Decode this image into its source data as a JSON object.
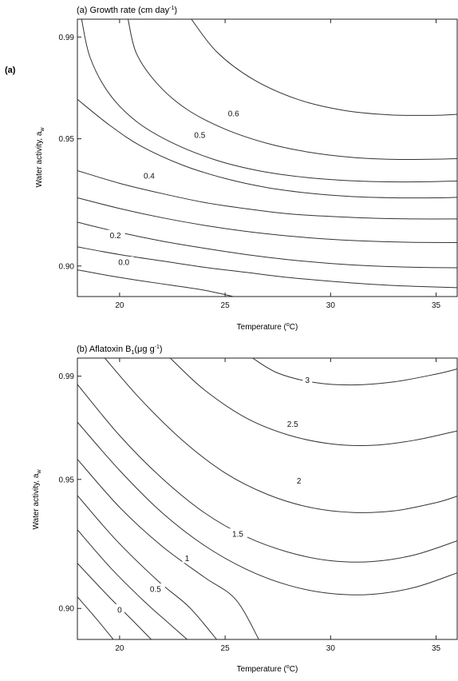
{
  "figure": {
    "left_panel_label": "(a)"
  },
  "chart_data": [
    {
      "type": "contour",
      "title": "(a) Growth rate (cm day",
      "title_sup": "-1",
      "title_end": ")",
      "xlabel": "Temperature (",
      "xlabel_sup": "o",
      "xlabel_end": "C)",
      "ylabel": "Water activity, a",
      "ylabel_sub": "w",
      "xlim": [
        18,
        36
      ],
      "ylim": [
        0.888,
        0.997
      ],
      "xticks": [
        20,
        25,
        30,
        35
      ],
      "xtick_labels": [
        "20",
        "25",
        "30",
        "35"
      ],
      "yticks": [
        0.9,
        0.95,
        0.99
      ],
      "ytick_labels": [
        "0.90",
        "0.95",
        "0.99"
      ],
      "contours": [
        {
          "level": "0.0",
          "label_at": [
            20.2,
            0.9015
          ],
          "points": [
            [
              18,
              0.8985
            ],
            [
              19.5,
              0.8962
            ],
            [
              21,
              0.8942
            ],
            [
              22.5,
              0.8924
            ],
            [
              24,
              0.8905
            ],
            [
              25.4,
              0.888
            ]
          ]
        },
        {
          "level": "",
          "points": [
            [
              18,
              0.9075
            ],
            [
              20,
              0.9045
            ],
            [
              22,
              0.902
            ],
            [
              24,
              0.8995
            ],
            [
              26,
              0.8975
            ],
            [
              28,
              0.8955
            ],
            [
              30,
              0.894
            ],
            [
              32,
              0.8928
            ],
            [
              34,
              0.892
            ],
            [
              36,
              0.8915
            ]
          ]
        },
        {
          "level": "0.2",
          "label_at": [
            19.8,
            0.912
          ],
          "points": [
            [
              18,
              0.9172
            ],
            [
              20,
              0.9132
            ],
            [
              22,
              0.9098
            ],
            [
              24,
              0.907
            ],
            [
              26,
              0.9045
            ],
            [
              28,
              0.9025
            ],
            [
              30,
              0.901
            ],
            [
              32,
              0.9
            ],
            [
              34,
              0.8995
            ],
            [
              36,
              0.8993
            ]
          ]
        },
        {
          "level": "",
          "points": [
            [
              18,
              0.9268
            ],
            [
              20,
              0.9226
            ],
            [
              22,
              0.919
            ],
            [
              24,
              0.916
            ],
            [
              26,
              0.9136
            ],
            [
              28,
              0.9118
            ],
            [
              30,
              0.9105
            ],
            [
              32,
              0.9097
            ],
            [
              34,
              0.9093
            ],
            [
              36,
              0.9092
            ]
          ]
        },
        {
          "level": "0.4",
          "label_at": [
            21.4,
            0.9355
          ],
          "points": [
            [
              18,
              0.9375
            ],
            [
              20,
              0.9325
            ],
            [
              22,
              0.9285
            ],
            [
              24,
              0.925
            ],
            [
              26,
              0.9225
            ],
            [
              28,
              0.9205
            ],
            [
              30,
              0.9195
            ],
            [
              32,
              0.9188
            ],
            [
              34,
              0.9185
            ],
            [
              36,
              0.9185
            ]
          ]
        },
        {
          "level": "0.5",
          "label_at": [
            23.8,
            0.9515
          ],
          "points": [
            [
              18,
              0.9655
            ],
            [
              19.5,
              0.9555
            ],
            [
              21,
              0.9472
            ],
            [
              23,
              0.9396
            ],
            [
              25,
              0.9344
            ],
            [
              27,
              0.9308
            ],
            [
              29,
              0.9286
            ],
            [
              31,
              0.9273
            ],
            [
              33,
              0.9268
            ],
            [
              35,
              0.9268
            ],
            [
              36,
              0.927
            ]
          ]
        },
        {
          "level": "",
          "points": [
            [
              18.2,
              0.997
            ],
            [
              18.6,
              0.982
            ],
            [
              19.5,
              0.9678
            ],
            [
              20.8,
              0.9568
            ],
            [
              22.5,
              0.9484
            ],
            [
              24.5,
              0.9418
            ],
            [
              26.5,
              0.9376
            ],
            [
              28.5,
              0.9351
            ],
            [
              30.5,
              0.9337
            ],
            [
              32.5,
              0.9331
            ],
            [
              34.5,
              0.9331
            ],
            [
              36,
              0.9334
            ]
          ]
        },
        {
          "level": "",
          "points": [
            [
              20.4,
              0.997
            ],
            [
              20.8,
              0.9835
            ],
            [
              21.8,
              0.9715
            ],
            [
              23.2,
              0.9615
            ],
            [
              25,
              0.9538
            ],
            [
              27,
              0.9482
            ],
            [
              29,
              0.9447
            ],
            [
              31,
              0.9427
            ],
            [
              33,
              0.9419
            ],
            [
              35,
              0.942
            ],
            [
              36,
              0.9422
            ]
          ]
        },
        {
          "level": "0.6",
          "label_at": [
            25.4,
            0.96
          ],
          "points": [
            [
              23.4,
              0.997
            ],
            [
              24.6,
              0.9842
            ],
            [
              26.3,
              0.9735
            ],
            [
              28.4,
              0.9656
            ],
            [
              30.6,
              0.9612
            ],
            [
              32.8,
              0.9594
            ],
            [
              34.8,
              0.9592
            ],
            [
              36,
              0.9596
            ]
          ]
        }
      ]
    },
    {
      "type": "contour",
      "title": "(b) Aflatoxin  B",
      "title_sub": "1",
      "title_mid": "(μg g",
      "title_sup": "-1",
      "title_end": ")",
      "xlabel": "Temperature (",
      "xlabel_sup": "o",
      "xlabel_end": "C)",
      "ylabel": "Water activity, a",
      "ylabel_sub": "w",
      "xlim": [
        18,
        36
      ],
      "ylim": [
        0.888,
        0.997
      ],
      "xticks": [
        20,
        25,
        30,
        35
      ],
      "xtick_labels": [
        "20",
        "25",
        "30",
        "35"
      ],
      "yticks": [
        0.9,
        0.95,
        0.99
      ],
      "ytick_labels": [
        "0.90",
        "0.95",
        "0.99"
      ],
      "contours": [
        {
          "level": "",
          "points": [
            [
              18,
              0.9045
            ],
            [
              18.9,
              0.896
            ],
            [
              19.7,
              0.888
            ]
          ]
        },
        {
          "level": "0",
          "label_at": [
            20,
            0.8995
          ],
          "points": [
            [
              18,
              0.9175
            ],
            [
              19.5,
              0.9045
            ],
            [
              20.6,
              0.8955
            ],
            [
              21.5,
              0.888
            ]
          ]
        },
        {
          "level": "",
          "points": [
            [
              18,
              0.9305
            ],
            [
              19.6,
              0.9155
            ],
            [
              21.2,
              0.9025
            ],
            [
              22.3,
              0.8945
            ],
            [
              23.2,
              0.888
            ]
          ]
        },
        {
          "level": "0.5",
          "label_at": [
            21.7,
            0.9075
          ],
          "points": [
            [
              18,
              0.9438
            ],
            [
              19.8,
              0.9268
            ],
            [
              21.8,
              0.9108
            ],
            [
              23.3,
              0.9005
            ],
            [
              24.6,
              0.888
            ]
          ]
        },
        {
          "level": "1",
          "label_at": [
            23.2,
            0.9195
          ],
          "points": [
            [
              18,
              0.9578
            ],
            [
              20,
              0.9392
            ],
            [
              22,
              0.9242
            ],
            [
              24,
              0.9122
            ],
            [
              25.5,
              0.9035
            ],
            [
              26.6,
              0.888
            ]
          ]
        },
        {
          "level": "",
          "points": [
            [
              18,
              0.9722
            ],
            [
              20,
              0.9535
            ],
            [
              22,
              0.9372
            ],
            [
              24,
              0.9245
            ],
            [
              26,
              0.9152
            ],
            [
              28,
              0.909
            ],
            [
              30,
              0.9058
            ],
            [
              32,
              0.9055
            ],
            [
              34,
              0.9082
            ],
            [
              36,
              0.9138
            ]
          ]
        },
        {
          "level": "1.5",
          "label_at": [
            25.6,
            0.9288
          ],
          "points": [
            [
              18,
              0.9868
            ],
            [
              20,
              0.967
            ],
            [
              22,
              0.9505
            ],
            [
              24,
              0.9372
            ],
            [
              26,
              0.9278
            ],
            [
              28,
              0.9218
            ],
            [
              30,
              0.9185
            ],
            [
              32,
              0.9182
            ],
            [
              34,
              0.9208
            ],
            [
              36,
              0.9262
            ]
          ]
        },
        {
          "level": "2",
          "label_at": [
            28.5,
            0.9495
          ],
          "points": [
            [
              19.3,
              0.997
            ],
            [
              21,
              0.981
            ],
            [
              23,
              0.965
            ],
            [
              25,
              0.9525
            ],
            [
              27,
              0.9442
            ],
            [
              29,
              0.9392
            ],
            [
              31,
              0.9372
            ],
            [
              33,
              0.9378
            ],
            [
              35,
              0.941
            ],
            [
              36,
              0.9435
            ]
          ]
        },
        {
          "level": "2.5",
          "label_at": [
            28.2,
            0.9715
          ],
          "points": [
            [
              22.4,
              0.997
            ],
            [
              24,
              0.9848
            ],
            [
              26,
              0.9738
            ],
            [
              28,
              0.9672
            ],
            [
              30,
              0.9638
            ],
            [
              32,
              0.9632
            ],
            [
              34,
              0.9652
            ],
            [
              36,
              0.9688
            ]
          ]
        },
        {
          "level": "3",
          "label_at": [
            28.9,
            0.9885
          ],
          "points": [
            [
              26.3,
              0.997
            ],
            [
              27.5,
              0.9912
            ],
            [
              29.2,
              0.9876
            ],
            [
              31,
              0.9866
            ],
            [
              33,
              0.9878
            ],
            [
              35,
              0.9908
            ],
            [
              36,
              0.9928
            ]
          ]
        }
      ]
    }
  ]
}
